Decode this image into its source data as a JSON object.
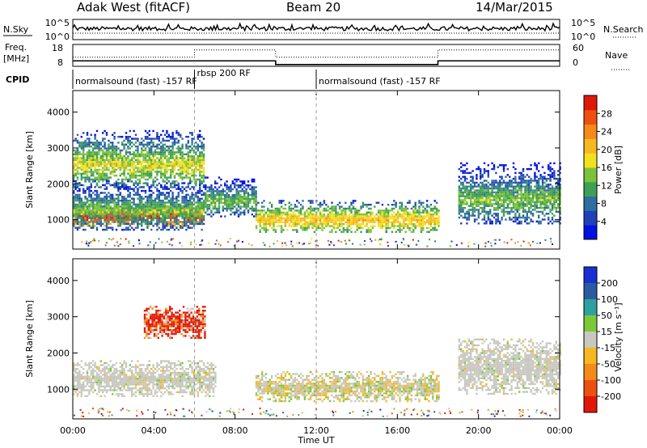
{
  "header": {
    "station": "Adak West (fitACF)",
    "beam": "Beam 20",
    "date": "14/Mar/2015"
  },
  "summary_panel": {
    "left_label": "N.Sky",
    "right_label": "N.Search",
    "left_ticks": [
      "10^5",
      "10^0"
    ],
    "right_ticks": [
      "10^5",
      "10^0"
    ]
  },
  "freq_panel": {
    "left_label_1": "Freq.",
    "left_label_2": "[MHz]",
    "right_label": "Nave",
    "left_ticks": [
      "18",
      "8"
    ],
    "right_ticks": [
      "60",
      "0"
    ],
    "freq_steps": [
      {
        "start_h": 0,
        "end_h": 10,
        "value": 10.5
      },
      {
        "start_h": 10,
        "end_h": 18,
        "value": 8.8
      },
      {
        "start_h": 18,
        "end_h": 24,
        "value": 10.5
      }
    ],
    "nave_steps": [
      {
        "start_h": 0,
        "end_h": 6,
        "value": 25
      },
      {
        "start_h": 6,
        "end_h": 10,
        "value": 45
      },
      {
        "start_h": 10,
        "end_h": 18,
        "value": 25
      },
      {
        "start_h": 18,
        "end_h": 24,
        "value": 45
      }
    ]
  },
  "cpid": {
    "label": "CPID",
    "segments": [
      {
        "start_h": 0,
        "text": "normalsound (fast) -157 RF"
      },
      {
        "start_h": 6,
        "text": "rbsp 200 RF"
      },
      {
        "start_h": 12,
        "text": "normalsound (fast) -157 RF"
      }
    ]
  },
  "chart_data": [
    {
      "type": "heatmap",
      "panel": "power",
      "ylabel": "Slant Range [km]",
      "xlabel": "",
      "xlim_hours": [
        0,
        24
      ],
      "ylim_km": [
        180,
        4600
      ],
      "yticks": [
        1000,
        2000,
        3000,
        4000
      ],
      "colorbar": {
        "label": "Power [dB]",
        "ticks": [
          "4",
          "8",
          "12",
          "16",
          "20",
          "24",
          "28"
        ],
        "colors": [
          "#0010e0",
          "#2040b8",
          "#2f6ea0",
          "#3fa055",
          "#7cc23a",
          "#f5e020",
          "#f8b820",
          "#f58a18",
          "#ee5010",
          "#e01808"
        ]
      },
      "regions": [
        {
          "name": "main-band-morning",
          "t0": 0,
          "t1": 6.5,
          "r0": 850,
          "r1": 1450,
          "level": 9
        },
        {
          "name": "morning-halo",
          "t0": 0,
          "t1": 6.5,
          "r0": 700,
          "r1": 2100,
          "level": 4
        },
        {
          "name": "upper-structure",
          "t0": 0,
          "t1": 6.5,
          "r0": 1900,
          "r1": 3500,
          "level": 5
        },
        {
          "name": "transition-band",
          "t0": 6.5,
          "t1": 9,
          "r0": 1100,
          "r1": 2200,
          "level": 4
        },
        {
          "name": "afternoon-band",
          "t0": 9,
          "t1": 18,
          "r0": 650,
          "r1": 1550,
          "level": 6
        },
        {
          "name": "evening-band",
          "t0": 19,
          "t1": 24,
          "r0": 900,
          "r1": 2600,
          "level": 4
        }
      ]
    },
    {
      "type": "heatmap",
      "panel": "velocity",
      "ylabel": "Slant Range [km]",
      "xlabel": "Time UT",
      "xlim_hours": [
        0,
        24
      ],
      "ylim_km": [
        180,
        4600
      ],
      "yticks": [
        1000,
        2000,
        3000,
        4000
      ],
      "xticks": [
        "00:00",
        "04:00",
        "08:00",
        "12:00",
        "16:00",
        "20:00",
        "00:00"
      ],
      "colorbar": {
        "label": "Velocity [m s⁻¹]",
        "ticks": [
          "200",
          "100",
          "50",
          "15",
          "-15",
          "-50",
          "-100",
          "-200"
        ],
        "colors": [
          "#1830d0",
          "#2a5aa0",
          "#2fa0a0",
          "#7cc83a",
          "#c8c8c0",
          "#f5b820",
          "#f58a18",
          "#ee5010",
          "#e01808"
        ]
      },
      "regions": [
        {
          "name": "ground-scatter-morning",
          "t0": 0,
          "t1": 7,
          "r0": 800,
          "r1": 1800,
          "level": "-15..15"
        },
        {
          "name": "red-patch",
          "t0": 3.5,
          "t1": 6.5,
          "r0": 2400,
          "r1": 3300,
          "level": "-200"
        },
        {
          "name": "afternoon-mixed",
          "t0": 9,
          "t1": 18,
          "r0": 650,
          "r1": 1500,
          "level": "-50"
        },
        {
          "name": "evening-gray",
          "t0": 19,
          "t1": 24,
          "r0": 850,
          "r1": 2400,
          "level": "-15..15"
        }
      ]
    }
  ]
}
